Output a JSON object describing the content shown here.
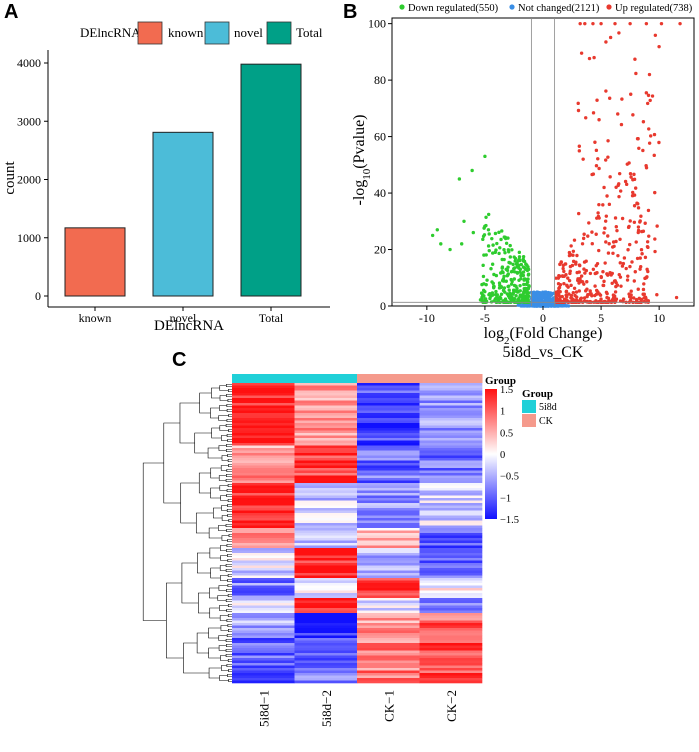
{
  "chart_data": [
    {
      "panel": "A",
      "type": "bar",
      "legend": {
        "title": "DElncRNA",
        "entries": [
          "known",
          "novel",
          "Total"
        ],
        "position": "top"
      },
      "categories": [
        "known",
        "novel",
        "Total"
      ],
      "values": [
        1170,
        2810,
        3980
      ],
      "colors": [
        "#f26b50",
        "#4cbcd8",
        "#00a087"
      ],
      "xlabel": "DElncRNA",
      "ylabel": "count",
      "ylim": [
        0,
        4200
      ],
      "yticks": [
        0,
        1000,
        2000,
        3000,
        4000
      ]
    },
    {
      "panel": "B",
      "type": "scatter",
      "title": "5i8d_vs_CK",
      "xlabel_main": "log",
      "xlabel_sub": "2",
      "xlabel_rest": "(Fold Change)",
      "ylabel_main": "-log",
      "ylabel_sub": "10",
      "ylabel_rest": "(Pvalue)",
      "xlim": [
        -13,
        13
      ],
      "ylim": [
        0,
        102
      ],
      "xticks": [
        -10,
        -5,
        0,
        5,
        10
      ],
      "yticks": [
        0,
        20,
        40,
        60,
        80,
        100
      ],
      "thresholds": {
        "x": [
          -1,
          1
        ],
        "y": 1.3
      },
      "legend": [
        {
          "label": "Down regulated(550)",
          "color": "#2ecc2e"
        },
        {
          "label": "Not changed(2121)",
          "color": "#3a8ee6"
        },
        {
          "label": "Up regulated(738)",
          "color": "#e8392e"
        }
      ],
      "series": [
        {
          "name": "Down regulated",
          "count": 550,
          "x_range": [
            -10,
            -1
          ],
          "color": "#2ecc2e"
        },
        {
          "name": "Not changed",
          "count": 2121,
          "x_range": [
            -3,
            3
          ],
          "color": "#3a8ee6"
        },
        {
          "name": "Up regulated",
          "count": 738,
          "x_range": [
            1,
            12
          ],
          "color": "#e8392e"
        }
      ]
    },
    {
      "panel": "C",
      "type": "heatmap",
      "columns": [
        "5i8d−1",
        "5i8d−2",
        "CK−1",
        "CK−2"
      ],
      "groups": [
        "5i8d",
        "5i8d",
        "CK",
        "CK"
      ],
      "group_legend": {
        "title": "Group",
        "entries": [
          {
            "label": "5i8d",
            "color": "#20d0d8"
          },
          {
            "label": "CK",
            "color": "#f59a8c"
          }
        ]
      },
      "scale": {
        "title": "Group",
        "min": -1.5,
        "max": 1.5,
        "ticks": [
          "1.5",
          "1",
          "0.5",
          "0",
          "−0.5",
          "−1",
          "−1.5"
        ]
      },
      "colors": {
        "low": "#1010ff",
        "mid": "#ffffff",
        "high": "#ff1010"
      },
      "rows": 120
    }
  ],
  "panels": {
    "a": "A",
    "b": "B",
    "c": "C"
  }
}
